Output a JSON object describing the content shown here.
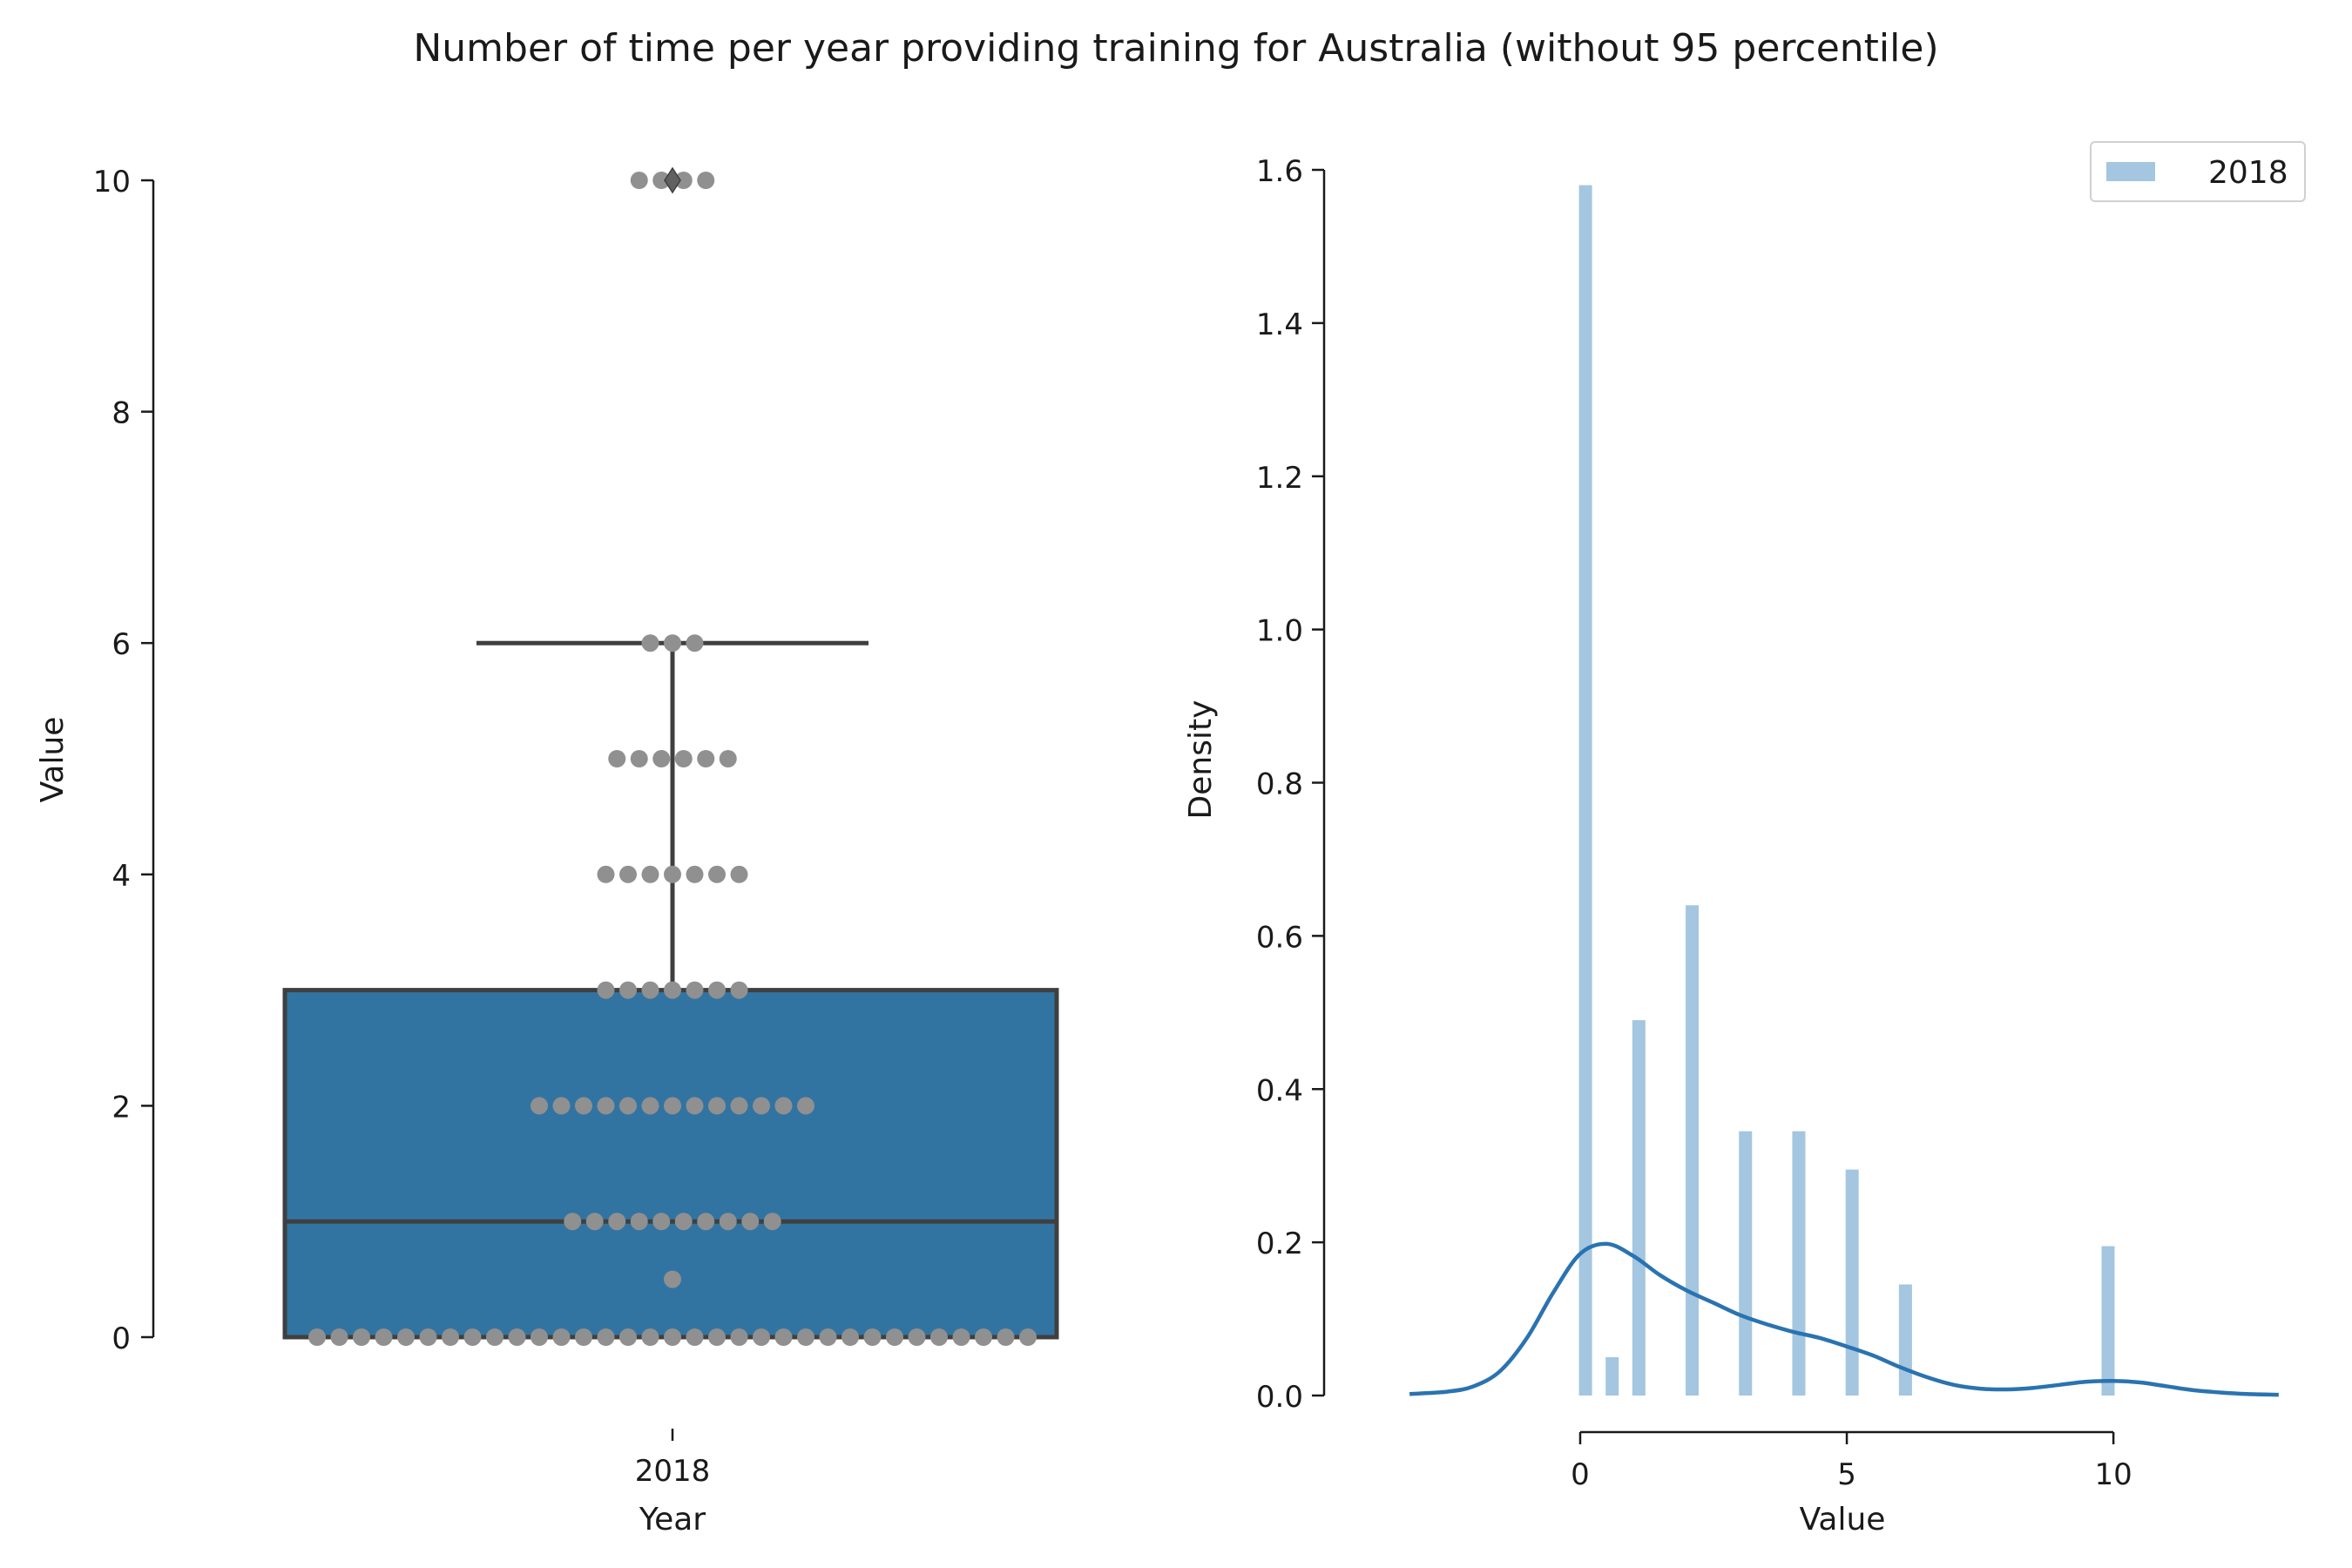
{
  "figure": {
    "title": "Number of time per year providing training for Australia (without 95 percentile)"
  },
  "chart_data": [
    {
      "type": "box",
      "xlabel": "Year",
      "ylabel": "Value",
      "categories": [
        "2018"
      ],
      "ylim": [
        0,
        10
      ],
      "yticks": [
        0,
        2,
        4,
        6,
        8,
        10
      ],
      "box": {
        "q1": 0,
        "median": 1,
        "q3": 3,
        "whisker_low": 0,
        "whisker_high": 6,
        "outliers": [
          10
        ]
      },
      "swarm": [
        {
          "value": 0,
          "count": 33
        },
        {
          "value": 0.5,
          "count": 1
        },
        {
          "value": 1,
          "count": 10
        },
        {
          "value": 2,
          "count": 13
        },
        {
          "value": 3,
          "count": 7
        },
        {
          "value": 4,
          "count": 7
        },
        {
          "value": 5,
          "count": 6
        },
        {
          "value": 6,
          "count": 3
        },
        {
          "value": 10,
          "count": 4
        }
      ],
      "colors": {
        "box": "#3274a1",
        "box_edge": "#3f3f3f",
        "swarm": "#909090"
      }
    },
    {
      "type": "histogram",
      "xlabel": "Value",
      "ylabel": "Density",
      "xlim": [
        -3.3,
        13.2
      ],
      "ylim": [
        0,
        1.6
      ],
      "xticks": [
        0,
        5,
        10
      ],
      "yticks": [
        0.0,
        0.2,
        0.4,
        0.6,
        0.8,
        1.0,
        1.2,
        1.4,
        1.6
      ],
      "legend": {
        "position": "top-right",
        "entries": [
          "2018"
        ]
      },
      "bars": [
        {
          "x": 0.1,
          "density": 1.58
        },
        {
          "x": 0.6,
          "density": 0.05
        },
        {
          "x": 1.1,
          "density": 0.49
        },
        {
          "x": 2.1,
          "density": 0.64
        },
        {
          "x": 3.1,
          "density": 0.345
        },
        {
          "x": 4.1,
          "density": 0.345
        },
        {
          "x": 5.1,
          "density": 0.295
        },
        {
          "x": 6.1,
          "density": 0.145
        },
        {
          "x": 9.9,
          "density": 0.195
        }
      ],
      "kde": {
        "x": [
          -3.2,
          -2.5,
          -2.0,
          -1.5,
          -1.0,
          -0.5,
          0.0,
          0.5,
          1.0,
          1.5,
          2.0,
          2.5,
          3.0,
          3.5,
          4.0,
          4.5,
          5.0,
          5.5,
          6.0,
          6.5,
          7.0,
          7.5,
          8.0,
          8.5,
          9.0,
          9.5,
          10.0,
          10.5,
          11.0,
          11.5,
          12.0,
          12.5,
          13.1
        ],
        "density": [
          0.002,
          0.005,
          0.012,
          0.032,
          0.075,
          0.135,
          0.185,
          0.198,
          0.182,
          0.157,
          0.137,
          0.121,
          0.105,
          0.093,
          0.083,
          0.075,
          0.064,
          0.052,
          0.037,
          0.024,
          0.014,
          0.009,
          0.008,
          0.01,
          0.014,
          0.018,
          0.019,
          0.017,
          0.012,
          0.007,
          0.004,
          0.002,
          0.001
        ]
      },
      "colors": {
        "bars": "#a4c6e0",
        "kde": "#2a73b0"
      }
    }
  ]
}
